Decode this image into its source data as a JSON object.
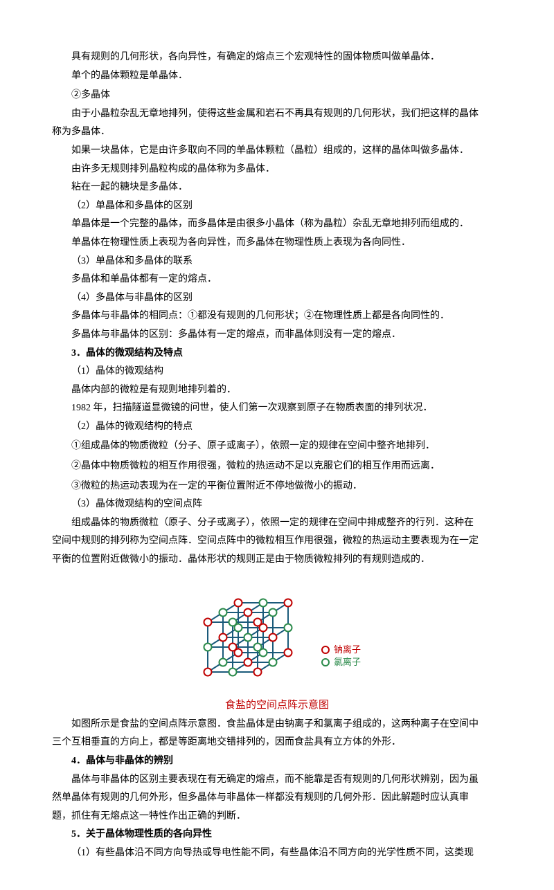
{
  "paragraphs": {
    "p1": "具有规则的几何形状，各向异性，有确定的熔点三个宏观特性的固体物质叫做单晶体．",
    "p2": "单个的晶体颗粒是单晶体．",
    "p3": "②多晶体",
    "p4a": "由于小晶粒杂乱无章地排列，使得这些金属和岩石不再具有规则的几何形状，我们把这样的晶体",
    "p4b": "称为多晶体．",
    "p5": "如果一块晶体，它是由许多取向不同的单晶体颗粒（晶粒）组成的，这样的晶体叫做多晶体．",
    "p6": "由许多无规则排列晶粒构成的晶体称为多晶体．",
    "p7": "粘在一起的糖块是多晶体．",
    "p8": "（2）单晶体和多晶体的区别",
    "p9": "单晶体是一个完整的晶体，而多晶体是由很多小晶体（称为晶粒）杂乱无章地排列而组成的．",
    "p10": "单晶体在物理性质上表现为各向异性，而多晶体在物理性质上表现为各向同性．",
    "p11": "（3）单晶体和多晶体的联系",
    "p12": "多晶体和单晶体都有一定的熔点．",
    "p13": "（4）多晶体与非晶体的区别",
    "p14": "多晶体与非晶体的相同点：①都没有规则的几何形状；②在物理性质上都是各向同性的．",
    "p15": "多晶体与非晶体的区别：多晶体有一定的熔点，而非晶体则没有一定的熔点．",
    "h3": "3．晶体的微观结构及特点",
    "p16": "（1）晶体的微观结构",
    "p17": "晶体内部的微粒是有规则地排列着的．",
    "p18": "1982 年，扫描隧道显微镜的问世，使人们第一次观察到原子在物质表面的排列状况．",
    "p19": "（2）晶体的微观结构的特点",
    "p20": "①组成晶体的物质微粒（分子、原子或离子），依照一定的规律在空间中整齐地排列．",
    "p21": "②晶体中物质微粒的相互作用很强，微粒的热运动不足以克服它们的相互作用而远离．",
    "p22": "③微粒的热运动表现为在一定的平衡位置附近不停地做微小的振动．",
    "p23": "（3）晶体微观结构的空间点阵",
    "p24a": "组成晶体的物质微粒（原子、分子或离子），依照一定的规律在空间中排成整齐的行列．这种在",
    "p24b": "空间中规则的排列称为空间点阵．空间点阵中的微粒相互作用很强，微粒的热运动主要表现为在一定",
    "p24c": "平衡的位置附近做微小的振动．晶体形状的规则正是由于物质微粒排列的有规则造成的．",
    "caption": "食盐的空间点阵示意图",
    "p25a": "如图所示是食盐的空间点阵示意图．食盐晶体是由钠离子和氯离子组成的，这两种离子在空间中",
    "p25b": "三个互相垂直的方向上，都是等距离地交错排列的，因而食盐具有立方体的外形．",
    "h4": "4．晶体与非晶体的辨别",
    "p26a": "晶体与非晶体的区别主要表现在有无确定的熔点，而不能靠是否有规则的几何形状辨别，因为虽",
    "p26b": "然单晶体有规则的几何外形，但多晶体与非晶体一样都没有规则的几何外形．因此解题时应认真审",
    "p26c": "题，抓住有无熔点这一特性作出正确的判断．",
    "h5": "5．关于晶体物理性质的各向异性",
    "p27": "（1）有些晶体沿不同方向导热或导电性能不同，有些晶体沿不同方向的光学性质不同，这类现"
  },
  "figure": {
    "legend_na": "钠离子",
    "legend_cl": "氯离子",
    "colors": {
      "line": "#1a5a7a",
      "na_fill": "#ffffff",
      "na_stroke": "#c00000",
      "cl_fill": "#ffffff",
      "cl_stroke": "#2a8a4a"
    },
    "grid": {
      "spacing": 36,
      "radius": 5.5,
      "stroke_width": 2,
      "depth_dx": 22,
      "depth_dy": -14
    }
  }
}
